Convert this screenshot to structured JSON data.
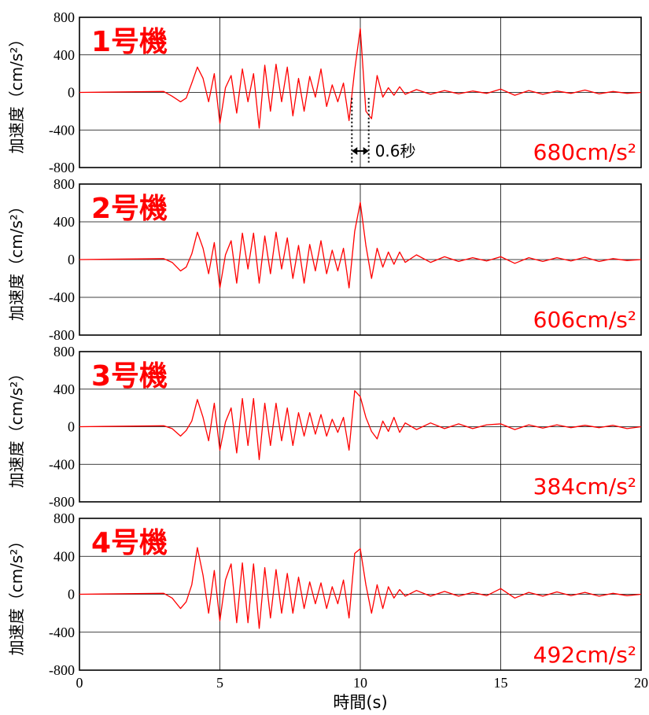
{
  "chart_data": [
    {
      "type": "line",
      "title": "1号機",
      "peak_label": "680cm/s²",
      "ylabel": "加速度（cm/s²）",
      "ylim": [
        -800,
        800
      ],
      "xlim": [
        0,
        20
      ],
      "yticks": [
        "800",
        "400",
        "0",
        "-400",
        "-800"
      ],
      "grid": true,
      "series_color": "#ff0000",
      "annotation": {
        "text": "0.6秒",
        "x_start": 9.7,
        "x_end": 10.3
      },
      "x": [
        0,
        3.0,
        3.3,
        3.6,
        3.8,
        4.0,
        4.2,
        4.4,
        4.6,
        4.8,
        5.0,
        5.2,
        5.4,
        5.6,
        5.8,
        6.0,
        6.2,
        6.4,
        6.6,
        6.8,
        7.0,
        7.2,
        7.4,
        7.6,
        7.8,
        8.0,
        8.2,
        8.4,
        8.6,
        8.8,
        9.0,
        9.2,
        9.4,
        9.6,
        9.8,
        10.0,
        10.2,
        10.4,
        10.6,
        10.8,
        11.0,
        11.2,
        11.4,
        11.6,
        12.0,
        12.5,
        13.0,
        13.5,
        14.0,
        14.5,
        15.0,
        15.5,
        16.0,
        16.5,
        17.0,
        17.5,
        18.0,
        18.5,
        19.0,
        19.5,
        20.0
      ],
      "y": [
        0,
        10,
        -40,
        -100,
        -60,
        100,
        270,
        150,
        -100,
        200,
        -330,
        50,
        180,
        -220,
        250,
        -100,
        200,
        -380,
        290,
        -200,
        300,
        -100,
        270,
        -250,
        150,
        -200,
        170,
        -50,
        250,
        -150,
        80,
        -100,
        100,
        -300,
        240,
        680,
        -200,
        -280,
        180,
        -50,
        50,
        -30,
        60,
        -20,
        30,
        -20,
        20,
        -15,
        15,
        -10,
        35,
        -30,
        20,
        -20,
        15,
        -10,
        25,
        -15,
        10,
        -10,
        0
      ]
    },
    {
      "type": "line",
      "title": "2号機",
      "peak_label": "606cm/s²",
      "ylabel": "加速度（cm/s²）",
      "ylim": [
        -800,
        800
      ],
      "xlim": [
        0,
        20
      ],
      "yticks": [
        "800",
        "400",
        "0",
        "-400",
        "-800"
      ],
      "grid": true,
      "series_color": "#ff0000",
      "x": [
        0,
        3.0,
        3.3,
        3.6,
        3.8,
        4.0,
        4.2,
        4.4,
        4.6,
        4.8,
        5.0,
        5.2,
        5.4,
        5.6,
        5.8,
        6.0,
        6.2,
        6.4,
        6.6,
        6.8,
        7.0,
        7.2,
        7.4,
        7.6,
        7.8,
        8.0,
        8.2,
        8.4,
        8.6,
        8.8,
        9.0,
        9.2,
        9.4,
        9.6,
        9.8,
        10.0,
        10.2,
        10.4,
        10.6,
        10.8,
        11.0,
        11.2,
        11.4,
        11.6,
        12.0,
        12.5,
        13.0,
        13.5,
        14.0,
        14.5,
        15.0,
        15.5,
        16.0,
        16.5,
        17.0,
        17.5,
        18.0,
        18.5,
        19.0,
        19.5,
        20.0
      ],
      "y": [
        0,
        10,
        -30,
        -120,
        -80,
        60,
        290,
        120,
        -150,
        180,
        -300,
        50,
        200,
        -250,
        280,
        -100,
        280,
        -250,
        250,
        -150,
        290,
        -100,
        230,
        -200,
        150,
        -250,
        160,
        -120,
        200,
        -150,
        100,
        -120,
        120,
        -300,
        300,
        606,
        150,
        -200,
        120,
        -80,
        80,
        -50,
        80,
        -30,
        50,
        -30,
        30,
        -20,
        20,
        -15,
        30,
        -40,
        20,
        -20,
        20,
        -15,
        25,
        -20,
        10,
        -10,
        0
      ]
    },
    {
      "type": "line",
      "title": "3号機",
      "peak_label": "384cm/s²",
      "ylabel": "加速度（cm/s²）",
      "ylim": [
        -800,
        800
      ],
      "xlim": [
        0,
        20
      ],
      "yticks": [
        "800",
        "400",
        "0",
        "-400",
        "-800"
      ],
      "grid": true,
      "series_color": "#ff0000",
      "x": [
        0,
        3.0,
        3.3,
        3.6,
        3.8,
        4.0,
        4.2,
        4.4,
        4.6,
        4.8,
        5.0,
        5.2,
        5.4,
        5.6,
        5.8,
        6.0,
        6.2,
        6.4,
        6.6,
        6.8,
        7.0,
        7.2,
        7.4,
        7.6,
        7.8,
        8.0,
        8.2,
        8.4,
        8.6,
        8.8,
        9.0,
        9.2,
        9.4,
        9.6,
        9.8,
        10.0,
        10.2,
        10.4,
        10.6,
        10.8,
        11.0,
        11.2,
        11.4,
        11.6,
        12.0,
        12.5,
        13.0,
        13.5,
        14.0,
        14.5,
        15.0,
        15.5,
        16.0,
        16.5,
        17.0,
        17.5,
        18.0,
        18.5,
        19.0,
        19.5,
        20.0
      ],
      "y": [
        0,
        10,
        -20,
        -100,
        -40,
        60,
        290,
        100,
        -150,
        250,
        -250,
        50,
        200,
        -280,
        300,
        -200,
        300,
        -350,
        250,
        -200,
        250,
        -150,
        200,
        -200,
        150,
        -100,
        150,
        -80,
        130,
        -100,
        80,
        -60,
        100,
        -250,
        384,
        320,
        100,
        -50,
        -130,
        60,
        -50,
        100,
        -60,
        40,
        -30,
        40,
        -20,
        30,
        -20,
        20,
        30,
        -30,
        20,
        -15,
        20,
        -10,
        15,
        -10,
        15,
        -20,
        0
      ]
    },
    {
      "type": "line",
      "title": "4号機",
      "peak_label": "492cm/s²",
      "ylabel": "加速度（cm/s²）",
      "ylim": [
        -800,
        800
      ],
      "xlim": [
        0,
        20
      ],
      "yticks": [
        "800",
        "400",
        "0",
        "-400",
        "-800"
      ],
      "grid": true,
      "series_color": "#ff0000",
      "x": [
        0,
        3.0,
        3.3,
        3.6,
        3.8,
        4.0,
        4.2,
        4.4,
        4.6,
        4.8,
        5.0,
        5.2,
        5.4,
        5.6,
        5.8,
        6.0,
        6.2,
        6.4,
        6.6,
        6.8,
        7.0,
        7.2,
        7.4,
        7.6,
        7.8,
        8.0,
        8.2,
        8.4,
        8.6,
        8.8,
        9.0,
        9.2,
        9.4,
        9.6,
        9.8,
        10.0,
        10.2,
        10.4,
        10.6,
        10.8,
        11.0,
        11.2,
        11.4,
        11.6,
        12.0,
        12.5,
        13.0,
        13.5,
        14.0,
        14.5,
        15.0,
        15.5,
        16.0,
        16.5,
        17.0,
        17.5,
        18.0,
        18.5,
        19.0,
        19.5,
        20.0
      ],
      "y": [
        0,
        10,
        -40,
        -150,
        -80,
        100,
        492,
        200,
        -200,
        250,
        -280,
        150,
        320,
        -300,
        330,
        -300,
        320,
        -360,
        280,
        -250,
        260,
        -200,
        220,
        -200,
        180,
        -150,
        130,
        -100,
        120,
        -150,
        80,
        -100,
        150,
        -250,
        430,
        480,
        100,
        -200,
        100,
        -150,
        80,
        -40,
        50,
        -20,
        40,
        -20,
        30,
        -20,
        20,
        -15,
        60,
        -40,
        20,
        -20,
        25,
        -15,
        20,
        -20,
        10,
        -15,
        0
      ]
    }
  ],
  "x_axis": {
    "label": "時間(s)",
    "ticks": [
      "0",
      "5",
      "10",
      "15",
      "20"
    ]
  }
}
